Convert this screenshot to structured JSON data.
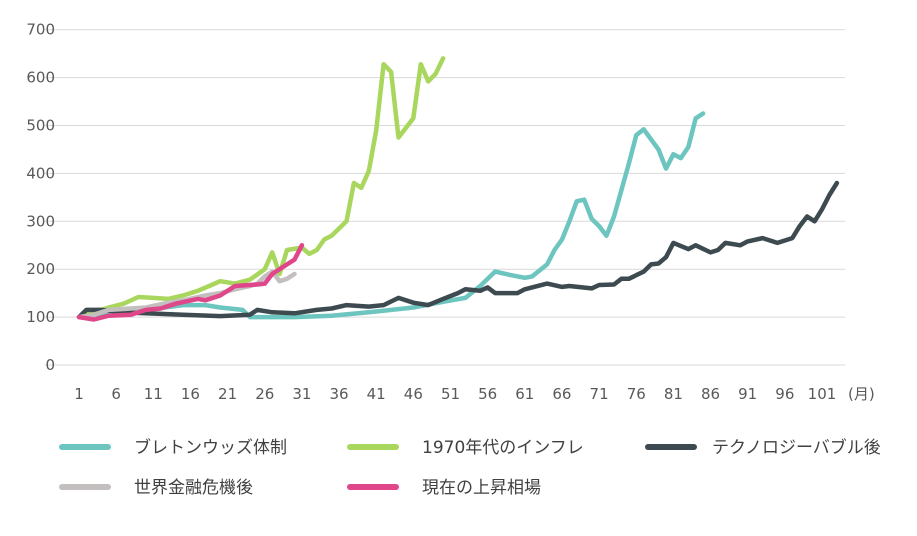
{
  "chart_data": {
    "type": "line",
    "title": "",
    "xlabel": "",
    "ylabel": "",
    "x_unit_label": "(月)",
    "xlim": [
      1,
      103
    ],
    "ylim": [
      0,
      700
    ],
    "y_ticks": [
      0,
      100,
      200,
      300,
      400,
      500,
      600,
      700
    ],
    "x_ticks": [
      1,
      6,
      11,
      16,
      21,
      26,
      31,
      36,
      41,
      46,
      51,
      56,
      61,
      66,
      71,
      76,
      81,
      86,
      91,
      96,
      101
    ],
    "grid": "horizontal",
    "legend_placement": "bottom",
    "series": [
      {
        "name": "ブレトンウッズ体制",
        "color": "#6cc5bf",
        "points": [
          [
            1,
            100
          ],
          [
            5,
            110
          ],
          [
            10,
            115
          ],
          [
            15,
            125
          ],
          [
            18,
            125
          ],
          [
            20,
            120
          ],
          [
            23,
            115
          ],
          [
            24,
            100
          ],
          [
            30,
            100
          ],
          [
            35,
            103
          ],
          [
            40,
            110
          ],
          [
            46,
            120
          ],
          [
            50,
            132
          ],
          [
            53,
            140
          ],
          [
            55,
            165
          ],
          [
            57,
            195
          ],
          [
            59,
            188
          ],
          [
            61,
            182
          ],
          [
            62,
            185
          ],
          [
            64,
            210
          ],
          [
            65,
            240
          ],
          [
            66,
            262
          ],
          [
            67,
            300
          ],
          [
            68,
            342
          ],
          [
            69,
            345
          ],
          [
            70,
            305
          ],
          [
            71,
            290
          ],
          [
            72,
            270
          ],
          [
            73,
            310
          ],
          [
            75,
            420
          ],
          [
            76,
            480
          ],
          [
            77,
            492
          ],
          [
            79,
            450
          ],
          [
            80,
            410
          ],
          [
            81,
            440
          ],
          [
            82,
            432
          ],
          [
            83,
            455
          ],
          [
            84,
            515
          ],
          [
            85,
            525
          ]
        ]
      },
      {
        "name": "1970年代のインフレ",
        "color": "#a9d65d",
        "points": [
          [
            1,
            100
          ],
          [
            3,
            110
          ],
          [
            5,
            120
          ],
          [
            7,
            128
          ],
          [
            9,
            142
          ],
          [
            11,
            140
          ],
          [
            13,
            138
          ],
          [
            15,
            145
          ],
          [
            17,
            155
          ],
          [
            19,
            168
          ],
          [
            20,
            175
          ],
          [
            22,
            170
          ],
          [
            24,
            178
          ],
          [
            26,
            200
          ],
          [
            27,
            235
          ],
          [
            28,
            190
          ],
          [
            29,
            240
          ],
          [
            31,
            245
          ],
          [
            32,
            232
          ],
          [
            33,
            240
          ],
          [
            34,
            262
          ],
          [
            35,
            270
          ],
          [
            37,
            300
          ],
          [
            38,
            380
          ],
          [
            39,
            370
          ],
          [
            40,
            405
          ],
          [
            41,
            490
          ],
          [
            42,
            628
          ],
          [
            43,
            612
          ],
          [
            44,
            475
          ],
          [
            46,
            515
          ],
          [
            47,
            628
          ],
          [
            48,
            592
          ],
          [
            49,
            608
          ],
          [
            50,
            640
          ]
        ]
      },
      {
        "name": "テクノロジーバブル後",
        "color": "#3d4a50",
        "points": [
          [
            1,
            100
          ],
          [
            2,
            115
          ],
          [
            4,
            115
          ],
          [
            7,
            110
          ],
          [
            10,
            108
          ],
          [
            15,
            105
          ],
          [
            20,
            102
          ],
          [
            24,
            105
          ],
          [
            25,
            115
          ],
          [
            27,
            110
          ],
          [
            30,
            108
          ],
          [
            33,
            115
          ],
          [
            35,
            118
          ],
          [
            37,
            125
          ],
          [
            40,
            122
          ],
          [
            42,
            125
          ],
          [
            44,
            140
          ],
          [
            46,
            130
          ],
          [
            48,
            125
          ],
          [
            50,
            138
          ],
          [
            52,
            150
          ],
          [
            53,
            158
          ],
          [
            55,
            155
          ],
          [
            56,
            162
          ],
          [
            57,
            150
          ],
          [
            60,
            150
          ],
          [
            61,
            158
          ],
          [
            64,
            170
          ],
          [
            66,
            163
          ],
          [
            67,
            165
          ],
          [
            70,
            160
          ],
          [
            71,
            167
          ],
          [
            73,
            168
          ],
          [
            74,
            180
          ],
          [
            75,
            180
          ],
          [
            77,
            195
          ],
          [
            78,
            210
          ],
          [
            79,
            212
          ],
          [
            80,
            225
          ],
          [
            81,
            255
          ],
          [
            83,
            242
          ],
          [
            84,
            250
          ],
          [
            86,
            235
          ],
          [
            87,
            240
          ],
          [
            88,
            255
          ],
          [
            90,
            250
          ],
          [
            91,
            258
          ],
          [
            93,
            265
          ],
          [
            95,
            255
          ],
          [
            97,
            265
          ],
          [
            98,
            290
          ],
          [
            99,
            310
          ],
          [
            100,
            300
          ],
          [
            101,
            325
          ],
          [
            102,
            355
          ],
          [
            103,
            380
          ]
        ]
      },
      {
        "name": "世界金融危機後",
        "color": "#c2bfbe",
        "points": [
          [
            1,
            100
          ],
          [
            3,
            105
          ],
          [
            5,
            115
          ],
          [
            8,
            118
          ],
          [
            10,
            120
          ],
          [
            13,
            130
          ],
          [
            15,
            135
          ],
          [
            18,
            145
          ],
          [
            20,
            150
          ],
          [
            22,
            158
          ],
          [
            24,
            165
          ],
          [
            25,
            170
          ],
          [
            26,
            185
          ],
          [
            27,
            195
          ],
          [
            28,
            175
          ],
          [
            29,
            180
          ],
          [
            30,
            190
          ]
        ]
      },
      {
        "name": "現在の上昇相場",
        "color": "#e0468a",
        "points": [
          [
            1,
            100
          ],
          [
            3,
            95
          ],
          [
            5,
            103
          ],
          [
            8,
            105
          ],
          [
            10,
            115
          ],
          [
            12,
            118
          ],
          [
            14,
            128
          ],
          [
            17,
            138
          ],
          [
            18,
            135
          ],
          [
            20,
            145
          ],
          [
            22,
            165
          ],
          [
            25,
            168
          ],
          [
            26,
            170
          ],
          [
            27,
            190
          ],
          [
            29,
            210
          ],
          [
            30,
            220
          ],
          [
            31,
            250
          ]
        ]
      }
    ]
  }
}
